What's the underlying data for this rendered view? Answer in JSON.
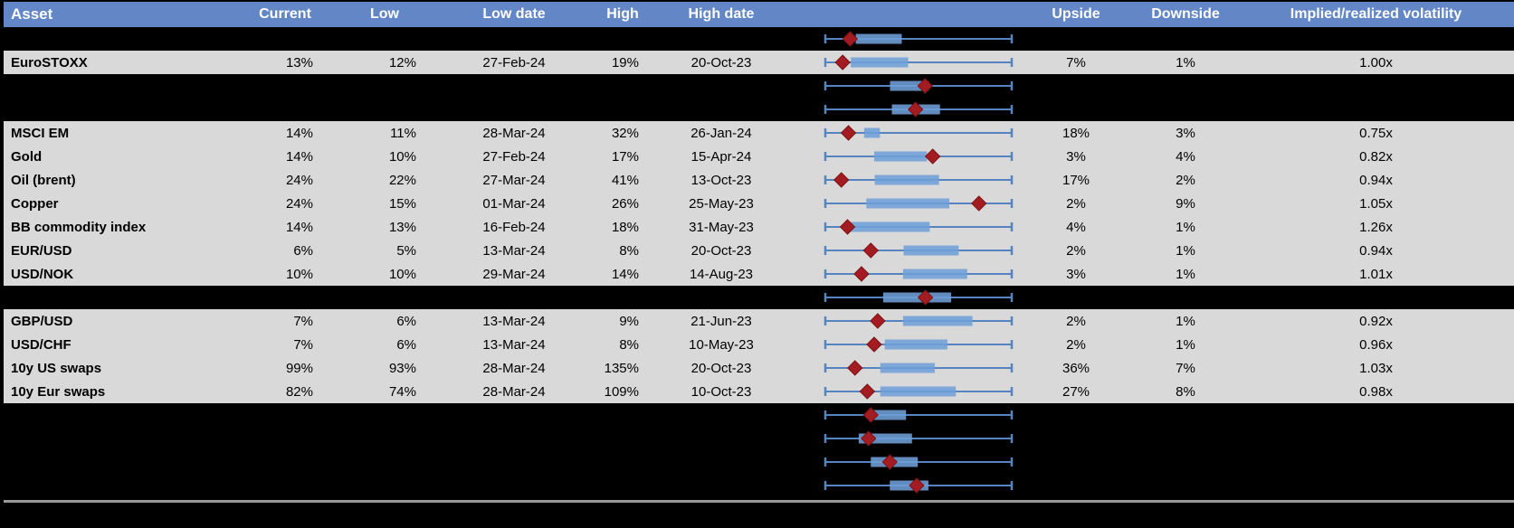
{
  "table": {
    "headers": [
      "Asset",
      "Current",
      "Low",
      "Low date",
      "High",
      "High date",
      "",
      "Upside",
      "Downside",
      "Implied/realized volatility"
    ]
  },
  "colors": {
    "header_bg": "#6286c6",
    "header_text": "#ffffff",
    "data_row_bg": "#d9d9d9",
    "spacer_row_bg": "#000000",
    "whisker_blue": "#5585c0",
    "box_blue": "#6f9fd7",
    "marker_red": "#a21c21",
    "marker_red_edge": "#7e1316",
    "divider_gray": "#999999"
  },
  "rows": [
    {
      "type": "spacer",
      "plot": {
        "box": [
          0.163,
          0.41
        ],
        "marker": 0.133
      }
    },
    {
      "type": "data",
      "asset": "EuroSTOXX",
      "current": "13%",
      "low": "12%",
      "low_date": "27-Feb-24",
      "high": "19%",
      "high_date": "20-Oct-23",
      "upside": "7%",
      "downside": "1%",
      "implied_realized": "1.00x",
      "plot": {
        "box": [
          0.137,
          0.444
        ],
        "marker": 0.093
      }
    },
    {
      "type": "spacer",
      "plot": {
        "box": [
          0.347,
          0.555
        ],
        "marker": 0.535
      }
    },
    {
      "type": "spacer",
      "plot": {
        "box": [
          0.357,
          0.615
        ],
        "marker": 0.484
      }
    },
    {
      "type": "data",
      "asset": "MSCI EM",
      "current": "14%",
      "low": "11%",
      "low_date": "28-Mar-24",
      "high": "32%",
      "high_date": "26-Jan-24",
      "upside": "18%",
      "downside": "3%",
      "implied_realized": "0.75x",
      "plot": {
        "box": [
          0.208,
          0.293
        ],
        "marker": 0.124
      }
    },
    {
      "type": "data",
      "asset": "Gold",
      "current": "14%",
      "low": "10%",
      "low_date": "27-Feb-24",
      "high": "17%",
      "high_date": "15-Apr-24",
      "upside": "3%",
      "downside": "4%",
      "implied_realized": "0.82x",
      "plot": {
        "box": [
          0.262,
          0.545
        ],
        "marker": 0.576
      }
    },
    {
      "type": "data",
      "asset": "Oil (brent)",
      "current": "24%",
      "low": "22%",
      "low_date": "27-Mar-24",
      "high": "41%",
      "high_date": "13-Oct-23",
      "upside": "17%",
      "downside": "2%",
      "implied_realized": "0.94x",
      "plot": {
        "box": [
          0.265,
          0.61
        ],
        "marker": 0.086
      }
    },
    {
      "type": "data",
      "asset": "Copper",
      "current": "24%",
      "low": "15%",
      "low_date": "01-Mar-24",
      "high": "26%",
      "high_date": "25-May-23",
      "upside": "2%",
      "downside": "9%",
      "implied_realized": "1.05x",
      "plot": {
        "box": [
          0.22,
          0.665
        ],
        "marker": 0.824
      }
    },
    {
      "type": "data",
      "asset": "BB commodity index",
      "current": "14%",
      "low": "13%",
      "low_date": "16-Feb-24",
      "high": "18%",
      "high_date": "31-May-23",
      "upside": "4%",
      "downside": "1%",
      "implied_realized": "1.26x",
      "plot": {
        "box": [
          0.127,
          0.56
        ],
        "marker": 0.119
      }
    },
    {
      "type": "data",
      "asset": "EUR/USD",
      "current": "6%",
      "low": "5%",
      "low_date": "13-Mar-24",
      "high": "8%",
      "high_date": "20-Oct-23",
      "upside": "2%",
      "downside": "1%",
      "implied_realized": "0.94x",
      "plot": {
        "box": [
          0.42,
          0.715
        ],
        "marker": 0.244
      }
    },
    {
      "type": "data",
      "asset": "USD/NOK",
      "current": "10%",
      "low": "10%",
      "low_date": "29-Mar-24",
      "high": "14%",
      "high_date": "14-Aug-23",
      "upside": "3%",
      "downside": "1%",
      "implied_realized": "1.01x",
      "plot": {
        "box": [
          0.417,
          0.761
        ],
        "marker": 0.194
      }
    },
    {
      "type": "spacer",
      "plot": {
        "box": [
          0.31,
          0.675
        ],
        "marker": 0.537
      }
    },
    {
      "type": "data",
      "asset": "GBP/USD",
      "current": "7%",
      "low": "6%",
      "low_date": "13-Mar-24",
      "high": "9%",
      "high_date": "21-Jun-23",
      "upside": "2%",
      "downside": "1%",
      "implied_realized": "0.92x",
      "plot": {
        "box": [
          0.417,
          0.789
        ],
        "marker": 0.281
      }
    },
    {
      "type": "data",
      "asset": "USD/CHF",
      "current": "7%",
      "low": "6%",
      "low_date": "13-Mar-24",
      "high": "8%",
      "high_date": "10-May-23",
      "upside": "2%",
      "downside": "1%",
      "implied_realized": "0.96x",
      "plot": {
        "box": [
          0.319,
          0.655
        ],
        "marker": 0.262
      }
    },
    {
      "type": "data",
      "asset": "10y US swaps",
      "current": "99%",
      "low": "93%",
      "low_date": "28-Mar-24",
      "high": "135%",
      "high_date": "20-Oct-23",
      "upside": "36%",
      "downside": "7%",
      "implied_realized": "1.03x",
      "plot": {
        "box": [
          0.295,
          0.587
        ],
        "marker": 0.159
      }
    },
    {
      "type": "data",
      "asset": "10y Eur swaps",
      "current": "82%",
      "low": "74%",
      "low_date": "28-Mar-24",
      "high": "109%",
      "high_date": "10-Oct-23",
      "upside": "27%",
      "downside": "8%",
      "implied_realized": "0.98x",
      "plot": {
        "box": [
          0.295,
          0.7
        ],
        "marker": 0.225
      }
    },
    {
      "type": "spacer",
      "plot": {
        "box": [
          0.233,
          0.433
        ],
        "marker": 0.244
      }
    },
    {
      "type": "spacer",
      "plot": {
        "box": [
          0.179,
          0.465
        ],
        "marker": 0.232
      }
    },
    {
      "type": "spacer",
      "plot": {
        "box": [
          0.244,
          0.496
        ],
        "marker": 0.346
      }
    },
    {
      "type": "spacer",
      "plot": {
        "box": [
          0.346,
          0.553
        ],
        "marker": 0.49
      }
    }
  ]
}
